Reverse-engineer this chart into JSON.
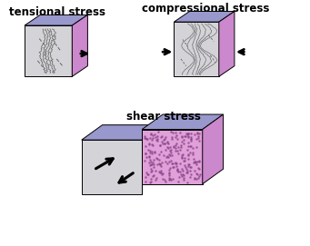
{
  "title_tensional": "tensional stress",
  "title_compressional": "compressional stress",
  "title_shear": "shear stress",
  "bg_color": "#ffffff",
  "face_color": "#d4d4d8",
  "top_color": "#9898cc",
  "side_color": "#cc88cc",
  "pink_speckle_bg": "#e0a0d8",
  "speckle_color": "#884488",
  "title_fontsize": 8.5,
  "arrow_lw": 1.8
}
